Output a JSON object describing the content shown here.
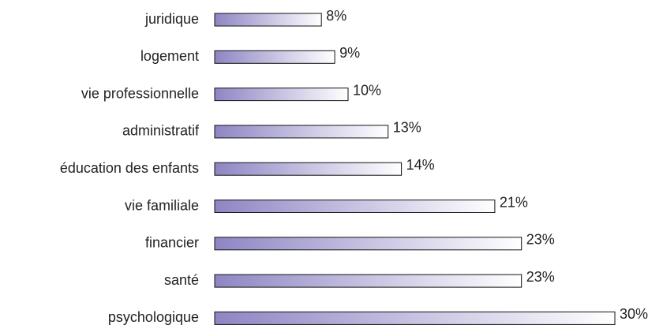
{
  "chart_data": {
    "type": "bar",
    "orientation": "horizontal",
    "categories": [
      "juridique",
      "logement",
      "vie professionnelle",
      "administratif",
      "éducation des enfants",
      "vie familiale",
      "financier",
      "santé",
      "psychologique"
    ],
    "values": [
      8,
      9,
      10,
      13,
      14,
      21,
      23,
      23,
      30
    ],
    "value_labels": [
      "8%",
      "9%",
      "10%",
      "13%",
      "14%",
      "21%",
      "23%",
      "23%",
      "30%"
    ],
    "color": "#8e86c4"
  }
}
